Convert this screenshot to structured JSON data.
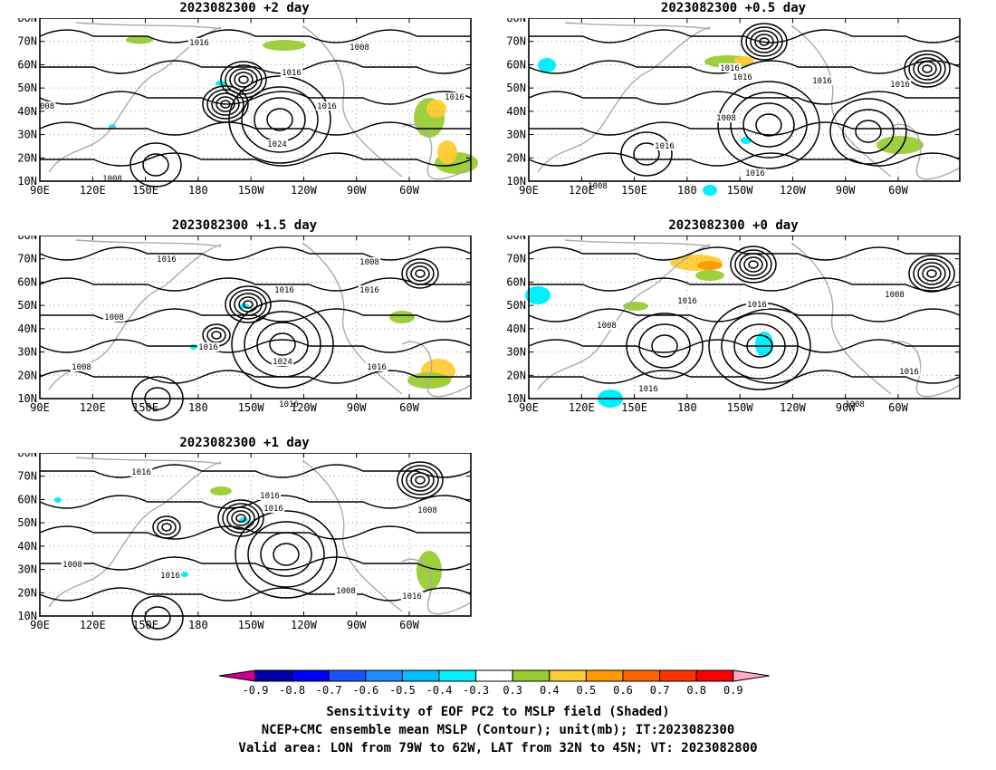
{
  "panels": [
    {
      "id": "p1",
      "title": "2023082300 +2 day",
      "contour_labels": [
        "1016",
        "1008",
        "1016",
        "1016",
        "1016",
        "1024",
        "1008",
        "008"
      ]
    },
    {
      "id": "p2",
      "title": "2023082300 +0.5 day",
      "contour_labels": [
        "1016",
        "1016",
        "1016",
        "1016",
        "1008",
        "1016",
        "1016",
        "1008"
      ]
    },
    {
      "id": "p3",
      "title": "2023082300 +1.5 day",
      "contour_labels": [
        "1016",
        "1008",
        "1016",
        "1016",
        "1016",
        "1008",
        "1024",
        "1016",
        "1016",
        "1008"
      ]
    },
    {
      "id": "p4",
      "title": "2023082300 +0 day",
      "contour_labels": [
        "1008",
        "1016",
        "1016",
        "1008",
        "1016",
        "1016",
        "1008"
      ]
    },
    {
      "id": "p5",
      "title": "2023082300 +1 day",
      "contour_labels": [
        "1016",
        "1016",
        "1016",
        "1008",
        "1016",
        "1008",
        "1008",
        "1016"
      ]
    }
  ],
  "axes": {
    "lon_ticks": [
      "90E",
      "120E",
      "150E",
      "180",
      "150W",
      "120W",
      "90W",
      "60W"
    ],
    "lat_ticks": [
      "80N",
      "70N",
      "60N",
      "50N",
      "40N",
      "30N",
      "20N",
      "10N"
    ]
  },
  "colorbar": {
    "labels": [
      "-0.9",
      "-0.8",
      "-0.7",
      "-0.6",
      "-0.5",
      "-0.4",
      "-0.3",
      "0.3",
      "0.4",
      "0.5",
      "0.6",
      "0.7",
      "0.8",
      "0.9"
    ],
    "colors": [
      "#c8008c",
      "#0000aa",
      "#0000ff",
      "#1e50ff",
      "#1e8cff",
      "#00beff",
      "#00f0ff",
      "#ffffff",
      "#99cc33",
      "#ffcc33",
      "#ff9900",
      "#ff6600",
      "#ff3300",
      "#ff0000",
      "#ffaacc"
    ]
  },
  "captions": {
    "line1": "Sensitivity of EOF PC2 to MSLP field (Shaded)",
    "line2": "NCEP+CMC ensemble mean MSLP (Contour); unit(mb); IT:2023082300",
    "line3": "Valid area: LON from 79W to 62W, LAT from 32N to 45N; VT: 2023082800"
  }
}
